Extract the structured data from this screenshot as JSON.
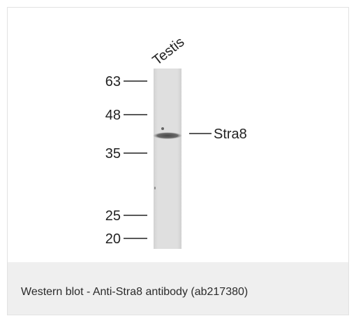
{
  "blot": {
    "lane_label": "Testis",
    "band_label": "Stra8",
    "markers": [
      {
        "label": "63",
        "kda": 63
      },
      {
        "label": "48",
        "kda": 48
      },
      {
        "label": "35",
        "kda": 35
      },
      {
        "label": "25",
        "kda": 25
      },
      {
        "label": "20",
        "kda": 20
      }
    ]
  },
  "caption": {
    "text": "Western blot - Anti-Stra8 antibody (ab217380)"
  },
  "colors": {
    "lane_fill": "#dcdcdc",
    "band": "#555555",
    "caption_background": "#efefef",
    "caption_text": "#2b2b2b",
    "border": "#e2e2e2"
  }
}
